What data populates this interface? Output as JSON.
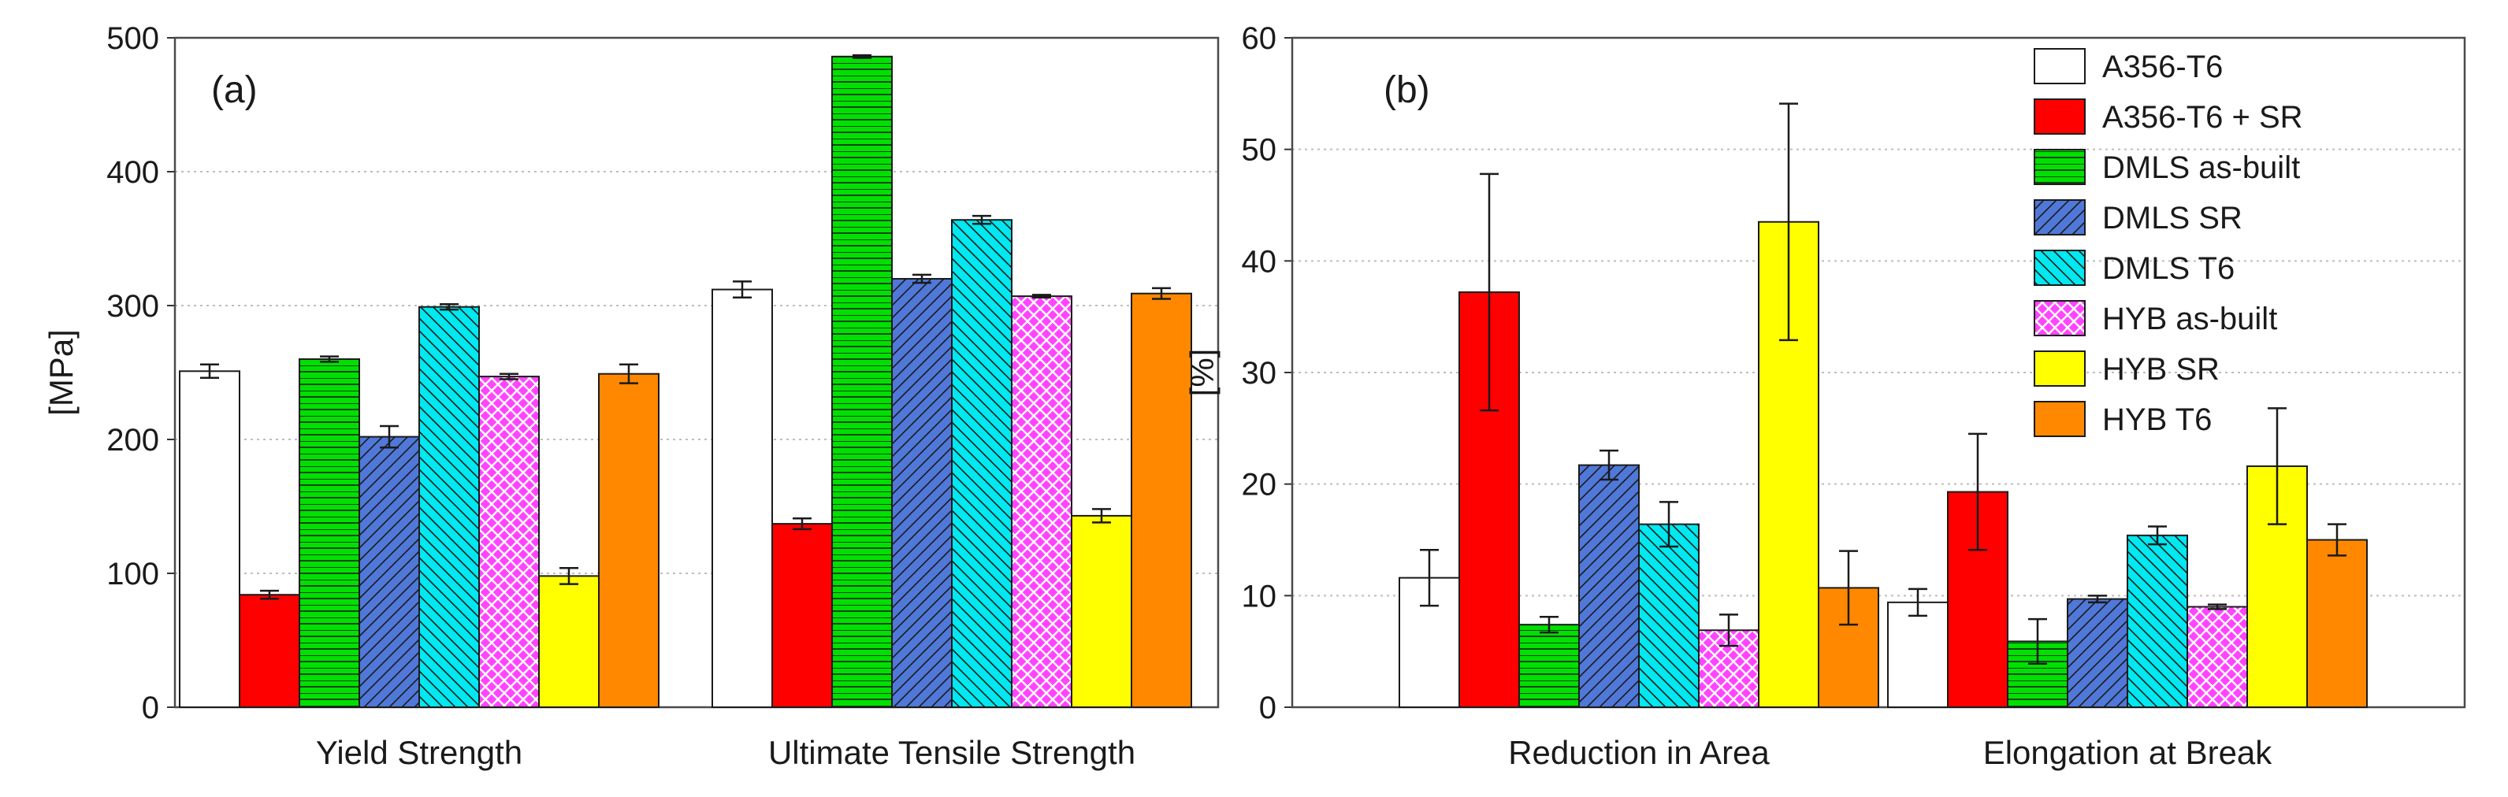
{
  "legend": {
    "entries": [
      {
        "label": "A356-T6",
        "color": "#ffffff",
        "pattern": "none"
      },
      {
        "label": "A356-T6 + SR",
        "color": "#ff0000",
        "pattern": "none"
      },
      {
        "label": "DMLS as-built",
        "color": "#00e000",
        "pattern": "horizontal"
      },
      {
        "label": "DMLS SR",
        "color": "#5078d8",
        "pattern": "diag-right"
      },
      {
        "label": "DMLS T6",
        "color": "#00e8f0",
        "pattern": "diag-left"
      },
      {
        "label": "HYB as-built",
        "color": "#ff44ff",
        "pattern": "crosshatch"
      },
      {
        "label": "HYB SR",
        "color": "#ffff00",
        "pattern": "none"
      },
      {
        "label": "HYB T6",
        "color": "#ff8800",
        "pattern": "none"
      }
    ]
  },
  "chart_data": [
    {
      "type": "bar",
      "panel_label": "(a)",
      "title": "",
      "xlabel": "",
      "ylabel": "[MPa]",
      "ylim": [
        0,
        500
      ],
      "yticks": [
        "0",
        "100",
        "200",
        "300",
        "400",
        "500"
      ],
      "grid": "horizontal dotted",
      "categories": [
        "Yield Strength",
        "Ultimate Tensile Strength"
      ],
      "series": [
        {
          "name": "A356-T6",
          "values": [
            251,
            312
          ],
          "errors": [
            5,
            6
          ]
        },
        {
          "name": "A356-T6 + SR",
          "values": [
            84,
            137
          ],
          "errors": [
            3,
            4
          ]
        },
        {
          "name": "DMLS as-built",
          "values": [
            260,
            486
          ],
          "errors": [
            2,
            1
          ]
        },
        {
          "name": "DMLS SR",
          "values": [
            202,
            320
          ],
          "errors": [
            8,
            3
          ]
        },
        {
          "name": "DMLS T6",
          "values": [
            299,
            364
          ],
          "errors": [
            2,
            3
          ]
        },
        {
          "name": "HYB as-built",
          "values": [
            247,
            307
          ],
          "errors": [
            2,
            1
          ]
        },
        {
          "name": "HYB SR",
          "values": [
            98,
            143
          ],
          "errors": [
            6,
            5
          ]
        },
        {
          "name": "HYB T6",
          "values": [
            249,
            309
          ],
          "errors": [
            7,
            4
          ]
        }
      ]
    },
    {
      "type": "bar",
      "panel_label": "(b)",
      "title": "",
      "xlabel": "",
      "ylabel": "[%]",
      "ylim": [
        0,
        60
      ],
      "yticks": [
        "0",
        "10",
        "20",
        "30",
        "40",
        "50",
        "60"
      ],
      "grid": "horizontal dotted",
      "legend_position": "top-right",
      "categories": [
        "Reduction in Area",
        "Elongation at Break"
      ],
      "series": [
        {
          "name": "A356-T6",
          "values": [
            11.6,
            9.4
          ],
          "errors": [
            2.5,
            1.2
          ]
        },
        {
          "name": "A356-T6 + SR",
          "values": [
            37.2,
            19.3
          ],
          "errors": [
            10.6,
            5.2
          ]
        },
        {
          "name": "DMLS as-built",
          "values": [
            7.4,
            5.9
          ],
          "errors": [
            0.7,
            2.0
          ]
        },
        {
          "name": "DMLS SR",
          "values": [
            21.7,
            9.7
          ],
          "errors": [
            1.3,
            0.3
          ]
        },
        {
          "name": "DMLS T6",
          "values": [
            16.4,
            15.4
          ],
          "errors": [
            2.0,
            0.8
          ]
        },
        {
          "name": "HYB as-built",
          "values": [
            6.9,
            9.0
          ],
          "errors": [
            1.4,
            0.2
          ]
        },
        {
          "name": "HYB SR",
          "values": [
            43.5,
            21.6
          ],
          "errors": [
            10.6,
            5.2
          ]
        },
        {
          "name": "HYB T6",
          "values": [
            10.7,
            15.0
          ],
          "errors": [
            3.3,
            1.4
          ]
        }
      ]
    }
  ]
}
